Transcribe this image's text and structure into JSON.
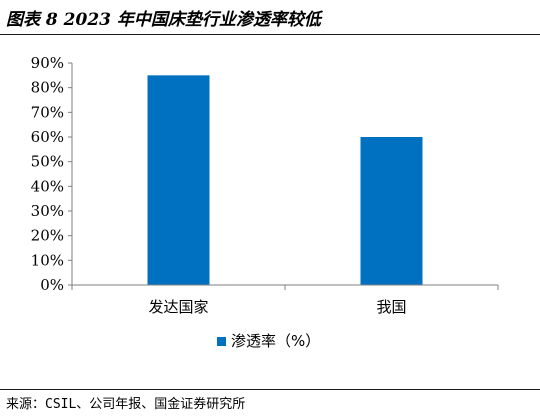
{
  "header": {
    "title": "图表 8 2023 年中国床垫行业渗透率较低"
  },
  "footer": {
    "source": "来源：CSIL、公司年报、国金证券研究所"
  },
  "chart_data": {
    "type": "bar",
    "categories": [
      "发达国家",
      "我国"
    ],
    "series": [
      {
        "name": "渗透率（%）",
        "values": [
          85,
          60
        ],
        "color": "#0070C0"
      }
    ],
    "ylim": [
      0,
      90
    ],
    "yticks": [
      0,
      10,
      20,
      30,
      40,
      50,
      60,
      70,
      80,
      90
    ],
    "ytick_labels": [
      "0%",
      "10%",
      "20%",
      "30%",
      "40%",
      "50%",
      "60%",
      "70%",
      "80%",
      "90%"
    ],
    "grid": false,
    "legend": "bottom-center"
  }
}
